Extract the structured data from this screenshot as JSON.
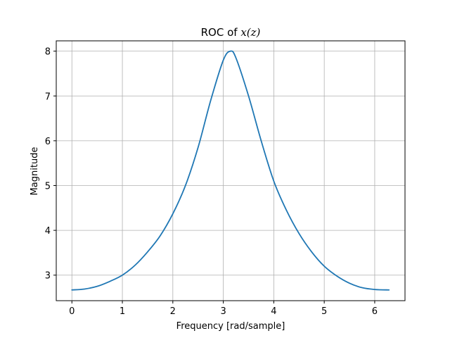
{
  "chart_data": {
    "type": "line",
    "title_prefix": "ROC of ",
    "title_math": "x(z)",
    "xlabel": "Frequency [rad/sample]",
    "ylabel": "Magnitude",
    "xlim": [
      -0.31,
      6.6
    ],
    "ylim": [
      2.43,
      8.23
    ],
    "xticks": [
      0,
      1,
      2,
      3,
      4,
      5,
      6
    ],
    "yticks": [
      3,
      4,
      5,
      6,
      7,
      8
    ],
    "grid": true,
    "line_color": "#1f77b4",
    "series": [
      {
        "x": [
          0.0,
          0.25,
          0.5,
          0.75,
          1.0,
          1.25,
          1.5,
          1.75,
          2.0,
          2.25,
          2.5,
          2.75,
          3.0,
          3.1416,
          3.25,
          3.5,
          3.75,
          4.0,
          4.25,
          4.5,
          4.75,
          5.0,
          5.25,
          5.5,
          5.75,
          6.0,
          6.2832
        ],
        "y": [
          2.67,
          2.69,
          2.75,
          2.86,
          3.0,
          3.22,
          3.52,
          3.88,
          4.37,
          5.0,
          5.85,
          6.9,
          7.8,
          8.0,
          7.85,
          7.0,
          6.0,
          5.1,
          4.45,
          3.93,
          3.52,
          3.2,
          2.98,
          2.82,
          2.72,
          2.68,
          2.67
        ]
      }
    ]
  }
}
